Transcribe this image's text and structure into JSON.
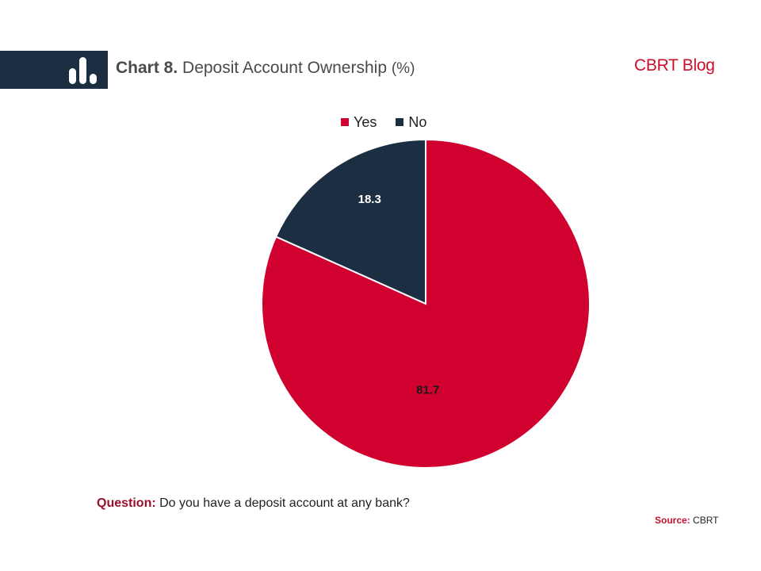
{
  "header": {
    "chart_number": "Chart 8.",
    "chart_title": "Deposit Account Ownership",
    "unit": "(%)",
    "brand": "CBRT Blog"
  },
  "icons": {
    "header_icon": "bar-chart-icon"
  },
  "colors": {
    "yes": "#d0002f",
    "no": "#1c2e42",
    "header_bg": "#1c2e42",
    "brand": "#c8102e"
  },
  "chart_data": {
    "type": "pie",
    "title": "Deposit Account Ownership (%)",
    "categories": [
      "Yes",
      "No"
    ],
    "values": [
      81.7,
      18.3
    ],
    "labels": [
      "81.7",
      "18.3"
    ],
    "legend": [
      "Yes",
      "No"
    ],
    "legend_position": "top",
    "start": "12 o'clock",
    "direction": "clockwise"
  },
  "footer": {
    "question_label": "Question:",
    "question_text": "Do you have a deposit account at any bank?",
    "source_label": "Source:",
    "source_text": "CBRT"
  }
}
